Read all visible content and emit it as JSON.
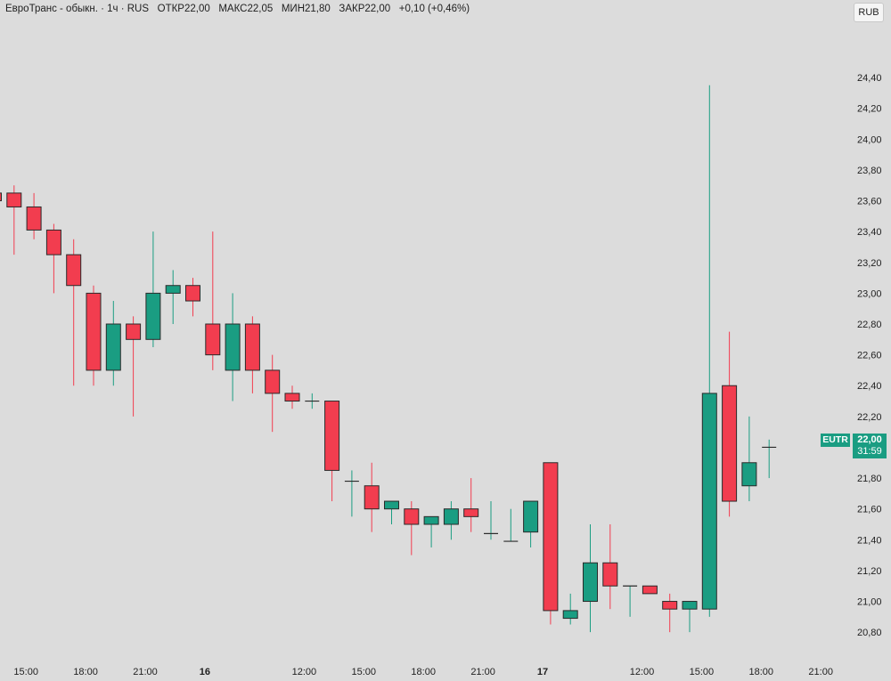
{
  "header": {
    "instrument": "ЕвроТранс - обыкн.",
    "interval": "1ч",
    "exchange": "RUS",
    "open_label": "ОТКР",
    "open": "22,00",
    "high_label": "МАКС",
    "high": "22,05",
    "low_label": "МИН",
    "low": "21,80",
    "close_label": "ЗАКР",
    "close": "22,00",
    "change": "+0,10 (+0,46%)"
  },
  "currency_button": "RUB",
  "price_tag": {
    "symbol": "EUTR",
    "price": "22,00",
    "countdown": "31:59"
  },
  "colors": {
    "up": "#1a9d82",
    "down": "#f23d4f",
    "background": "#dcdcdc",
    "outline": "#2a2a2a"
  },
  "chart_data": {
    "type": "candlestick",
    "ylim": [
      20.72,
      24.62
    ],
    "yticks": [
      "20,80",
      "21,00",
      "21,20",
      "21,40",
      "21,60",
      "21,80",
      "22,00",
      "22,20",
      "22,40",
      "22,60",
      "22,80",
      "23,00",
      "23,20",
      "23,40",
      "23,60",
      "23,80",
      "24,00",
      "24,20",
      "24,40"
    ],
    "xticks": [
      {
        "label": "15:00",
        "slot": 1.6,
        "bold": false
      },
      {
        "label": "18:00",
        "slot": 4.6,
        "bold": false
      },
      {
        "label": "21:00",
        "slot": 7.6,
        "bold": false
      },
      {
        "label": "16",
        "slot": 10.6,
        "bold": true
      },
      {
        "label": "12:00",
        "slot": 15.6,
        "bold": false
      },
      {
        "label": "15:00",
        "slot": 18.6,
        "bold": false
      },
      {
        "label": "18:00",
        "slot": 21.6,
        "bold": false
      },
      {
        "label": "21:00",
        "slot": 24.6,
        "bold": false
      },
      {
        "label": "17",
        "slot": 27.6,
        "bold": true
      },
      {
        "label": "12:00",
        "slot": 32.6,
        "bold": false
      },
      {
        "label": "15:00",
        "slot": 35.6,
        "bold": false
      },
      {
        "label": "18:00",
        "slot": 38.6,
        "bold": false
      },
      {
        "label": "21:00",
        "slot": 41.6,
        "bold": false
      }
    ],
    "candles": [
      {
        "o": 23.65,
        "h": 23.65,
        "l": 23.6,
        "c": 23.6
      },
      {
        "o": 23.65,
        "h": 23.7,
        "l": 23.25,
        "c": 23.56
      },
      {
        "o": 23.56,
        "h": 23.65,
        "l": 23.35,
        "c": 23.41
      },
      {
        "o": 23.41,
        "h": 23.45,
        "l": 23.0,
        "c": 23.25
      },
      {
        "o": 23.25,
        "h": 23.35,
        "l": 22.4,
        "c": 23.05
      },
      {
        "o": 23.0,
        "h": 23.05,
        "l": 22.4,
        "c": 22.5
      },
      {
        "o": 22.5,
        "h": 22.95,
        "l": 22.4,
        "c": 22.8
      },
      {
        "o": 22.8,
        "h": 22.85,
        "l": 22.2,
        "c": 22.7
      },
      {
        "o": 22.7,
        "h": 23.4,
        "l": 22.65,
        "c": 23.0
      },
      {
        "o": 23.0,
        "h": 23.15,
        "l": 22.8,
        "c": 23.05
      },
      {
        "o": 23.05,
        "h": 23.1,
        "l": 22.85,
        "c": 22.95
      },
      {
        "o": 22.8,
        "h": 23.4,
        "l": 22.5,
        "c": 22.6
      },
      {
        "o": 22.5,
        "h": 23.0,
        "l": 22.3,
        "c": 22.8
      },
      {
        "o": 22.8,
        "h": 22.85,
        "l": 22.35,
        "c": 22.5
      },
      {
        "o": 22.5,
        "h": 22.6,
        "l": 22.1,
        "c": 22.35
      },
      {
        "o": 22.35,
        "h": 22.4,
        "l": 22.25,
        "c": 22.3
      },
      {
        "o": 22.3,
        "h": 22.35,
        "l": 22.25,
        "c": 22.3
      },
      {
        "o": 22.3,
        "h": 22.3,
        "l": 21.65,
        "c": 21.85
      },
      {
        "o": 21.78,
        "h": 21.85,
        "l": 21.55,
        "c": 21.78
      },
      {
        "o": 21.75,
        "h": 21.9,
        "l": 21.45,
        "c": 21.6
      },
      {
        "o": 21.6,
        "h": 21.65,
        "l": 21.5,
        "c": 21.65
      },
      {
        "o": 21.6,
        "h": 21.65,
        "l": 21.3,
        "c": 21.5
      },
      {
        "o": 21.5,
        "h": 21.55,
        "l": 21.35,
        "c": 21.55
      },
      {
        "o": 21.5,
        "h": 21.65,
        "l": 21.4,
        "c": 21.6
      },
      {
        "o": 21.6,
        "h": 21.8,
        "l": 21.45,
        "c": 21.55
      },
      {
        "o": 21.44,
        "h": 21.65,
        "l": 21.4,
        "c": 21.44
      },
      {
        "o": 21.39,
        "h": 21.6,
        "l": 21.39,
        "c": 21.39
      },
      {
        "o": 21.45,
        "h": 21.65,
        "l": 21.35,
        "c": 21.65
      },
      {
        "o": 21.9,
        "h": 21.9,
        "l": 20.85,
        "c": 20.94
      },
      {
        "o": 20.89,
        "h": 21.05,
        "l": 20.85,
        "c": 20.94
      },
      {
        "o": 21.0,
        "h": 21.5,
        "l": 20.8,
        "c": 21.25
      },
      {
        "o": 21.25,
        "h": 21.5,
        "l": 20.95,
        "c": 21.1
      },
      {
        "o": 21.1,
        "h": 21.1,
        "l": 20.9,
        "c": 21.1
      },
      {
        "o": 21.1,
        "h": 21.1,
        "l": 21.05,
        "c": 21.05
      },
      {
        "o": 21.0,
        "h": 21.05,
        "l": 20.8,
        "c": 20.95
      },
      {
        "o": 20.95,
        "h": 21.0,
        "l": 20.8,
        "c": 21.0
      },
      {
        "o": 20.95,
        "h": 24.35,
        "l": 20.9,
        "c": 22.35
      },
      {
        "o": 22.4,
        "h": 22.75,
        "l": 21.55,
        "c": 21.65
      },
      {
        "o": 21.75,
        "h": 22.2,
        "l": 21.65,
        "c": 21.9
      },
      {
        "o": 22.0,
        "h": 22.05,
        "l": 21.8,
        "c": 22.0
      }
    ]
  }
}
